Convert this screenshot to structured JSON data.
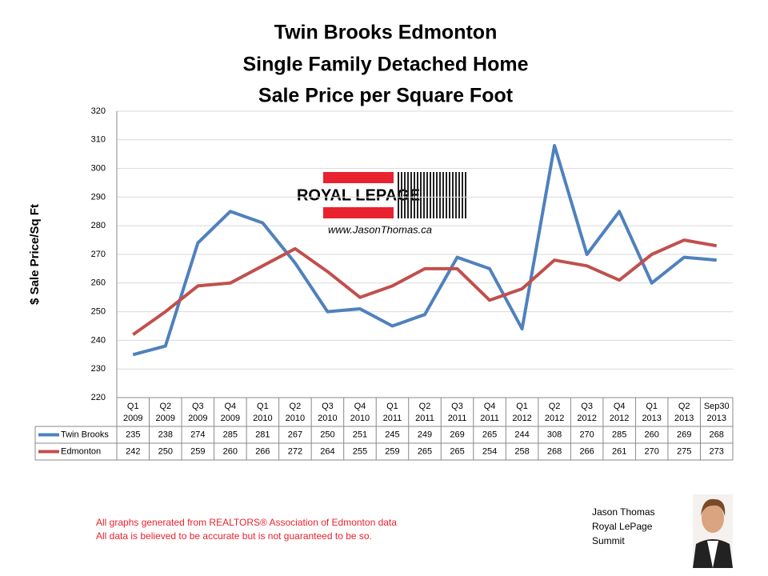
{
  "chart_data": {
    "type": "line",
    "title": [
      "Twin Brooks Edmonton",
      "Single Family Detached Home",
      "Sale Price per Square Foot"
    ],
    "y_label": "$ Sale Price/Sq Ft",
    "categories": [
      [
        "Q1",
        "2009"
      ],
      [
        "Q2",
        "2009"
      ],
      [
        "Q3",
        "2009"
      ],
      [
        "Q4",
        "2009"
      ],
      [
        "Q1",
        "2010"
      ],
      [
        "Q2",
        "2010"
      ],
      [
        "Q3",
        "2010"
      ],
      [
        "Q4",
        "2010"
      ],
      [
        "Q1",
        "2011"
      ],
      [
        "Q2",
        "2011"
      ],
      [
        "Q3",
        "2011"
      ],
      [
        "Q4",
        "2011"
      ],
      [
        "Q1",
        "2012"
      ],
      [
        "Q2",
        "2012"
      ],
      [
        "Q3",
        "2012"
      ],
      [
        "Q4",
        "2012"
      ],
      [
        "Q1",
        "2013"
      ],
      [
        "Q2",
        "2013"
      ],
      [
        "Sep30",
        "2013"
      ]
    ],
    "series": [
      {
        "name": "Twin Brooks",
        "color": "#4f81bd",
        "values": [
          235,
          238,
          274,
          285,
          281,
          267,
          250,
          251,
          245,
          249,
          269,
          265,
          244,
          308,
          270,
          285,
          260,
          269,
          268
        ]
      },
      {
        "name": "Edmonton",
        "color": "#c0504d",
        "values": [
          242,
          250,
          259,
          260,
          266,
          272,
          264,
          255,
          259,
          265,
          265,
          254,
          258,
          268,
          266,
          261,
          270,
          275,
          273
        ]
      }
    ],
    "ylim": [
      220,
      320
    ],
    "yticks": [
      220,
      230,
      240,
      250,
      260,
      270,
      280,
      290,
      300,
      310,
      320
    ],
    "grid": true
  },
  "logo": {
    "brand": "ROYAL LEPAGE",
    "url": "www.JasonThomas.ca"
  },
  "notes": [
    "All graphs generated from REALTORS® Association of Edmonton data",
    "All data is believed to be accurate but is not guaranteed to be so."
  ],
  "agent": [
    "Jason Thomas",
    "Royal LePage",
    "Summit"
  ]
}
